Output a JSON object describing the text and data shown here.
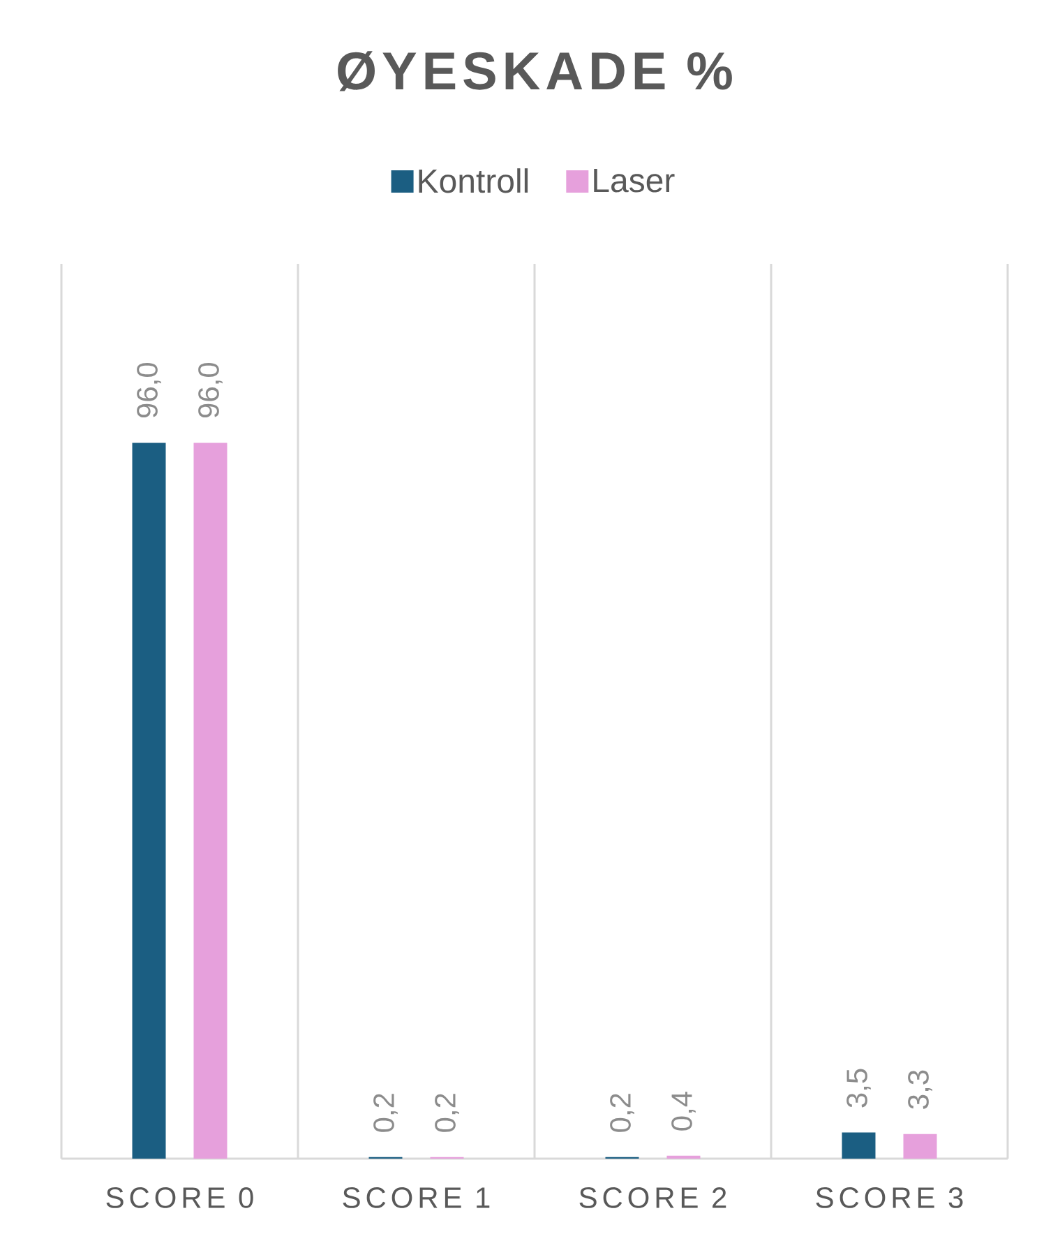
{
  "chart_data": {
    "type": "bar",
    "title": "ØYESKADE %",
    "categories": [
      "SCORE 0",
      "SCORE 1",
      "SCORE 2",
      "SCORE 3"
    ],
    "series": [
      {
        "name": "Kontroll",
        "color": "#1b5e82",
        "values": [
          96.0,
          0.2,
          0.2,
          3.5
        ],
        "value_labels": [
          "96,0",
          "0,2",
          "0,2",
          "3,5"
        ]
      },
      {
        "name": "Laser",
        "color": "#e6a0dc",
        "values": [
          96.0,
          0.2,
          0.4,
          3.3
        ],
        "value_labels": [
          "96,0",
          "0,2",
          "0,4",
          "3,3"
        ]
      }
    ],
    "ylim": [
      0,
      120
    ],
    "grid": "x",
    "legend": "top",
    "tick_labels": "x"
  }
}
